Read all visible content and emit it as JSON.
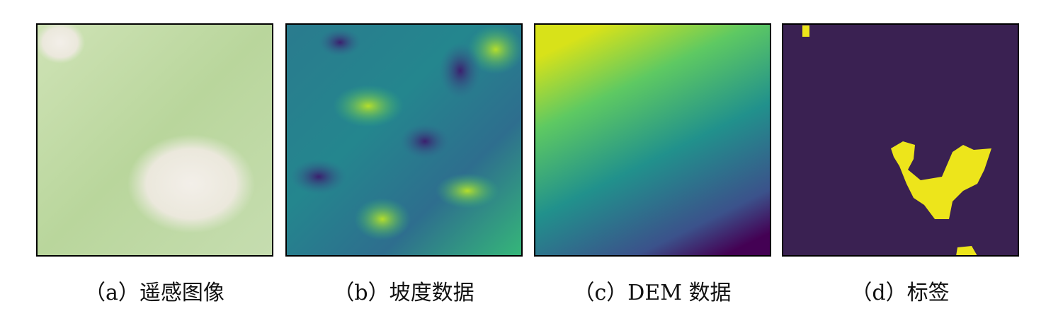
{
  "panels": [
    {
      "caption": "（a）遥感图像"
    },
    {
      "caption": "（b）坡度数据"
    },
    {
      "caption": "（c）DEM 数据"
    },
    {
      "caption": "（d）标签"
    }
  ]
}
